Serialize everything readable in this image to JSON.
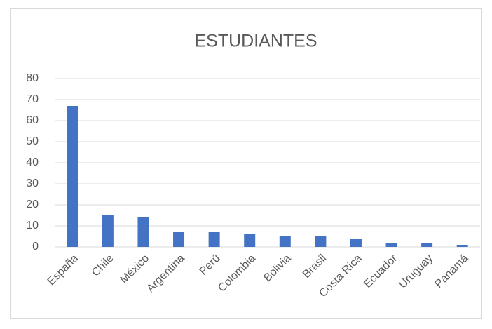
{
  "chart_data": {
    "type": "bar",
    "title": "ESTUDIANTES",
    "categories": [
      "España",
      "Chile",
      "México",
      "Argentina",
      "Perú",
      "Colombia",
      "Bolivia",
      "Brasil",
      "Costa Rica",
      "Ecuador",
      "Uruguay",
      "Panamá"
    ],
    "values": [
      67,
      15,
      14,
      7,
      7,
      6,
      5,
      5,
      4,
      2,
      2,
      1
    ],
    "color": "#4472c4",
    "ylim": [
      0,
      80
    ],
    "yticks": [
      0,
      10,
      20,
      30,
      40,
      50,
      60,
      70,
      80
    ],
    "grid": true
  }
}
